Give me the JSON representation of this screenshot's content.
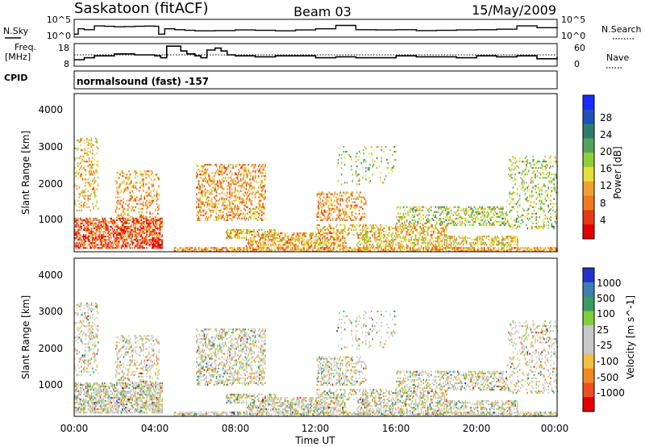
{
  "header": {
    "station": "Saskatoon (fitACF)",
    "beam": "Beam 03",
    "date": "15/May/2009"
  },
  "top_panels": {
    "left_label_nsky": "N.Sky",
    "left_label_freq_1": "Freq.",
    "left_label_freq_2": "[MHz]",
    "left_label_cpid": "CPID",
    "right_label_nsearch": "N.Search",
    "right_label_nave": "Nave",
    "noise_ticks": [
      "10^5",
      "10^0"
    ],
    "freq_ticks": [
      "18",
      "8"
    ],
    "nave_ticks": [
      "60",
      "0"
    ],
    "cpid_text": "normalsound (fast) -157"
  },
  "colorbars": {
    "power_title": "Power [dB]",
    "power_ticks": [
      "28",
      "24",
      "20",
      "16",
      "12",
      "8",
      "4"
    ],
    "power_colors": [
      "#1a2bff",
      "#2050b8",
      "#2e7d6a",
      "#55a35c",
      "#8fcf3a",
      "#e5e03a",
      "#f0a030",
      "#f07a20",
      "#e83a15",
      "#e40000"
    ],
    "velocity_title": "Velocity [m s^-1]",
    "velocity_ticks": [
      "1000",
      "500",
      "100",
      "25",
      "-25",
      "-100",
      "-500",
      "-1000"
    ],
    "velocity_colors": [
      "#2233cc",
      "#3f7fb0",
      "#3a9a60",
      "#7fcf3a",
      "#c8c8c8",
      "#c8c8c8",
      "#f0c040",
      "#f08a20",
      "#f05020",
      "#e40000"
    ]
  },
  "axes": {
    "y_label": "Slant Range [km]",
    "y_ticks": [
      "4000",
      "3000",
      "2000",
      "1000"
    ],
    "x_label": "Time UT",
    "x_ticks": [
      "00:00",
      "04:00",
      "08:00",
      "12:00",
      "16:00",
      "20:00",
      "00:00"
    ]
  },
  "chart_data": [
    {
      "type": "line",
      "name": "N.Sky / N.Search noise",
      "y_scale": "log",
      "ylim": [
        1,
        100000
      ],
      "x_range_hours": [
        0,
        24
      ],
      "x": [
        0,
        0.2,
        0.5,
        1.0,
        1.5,
        2.0,
        2.5,
        3.0,
        3.5,
        4.0,
        4.2,
        4.5,
        5.0,
        5.5,
        6.0,
        7.0,
        8.0,
        9.0,
        10.0,
        11.0,
        12.0,
        13.0,
        14.0,
        15.0,
        16.0,
        17.0,
        18.0,
        19.0,
        20.0,
        21.0,
        22.0,
        23.0,
        24.0
      ],
      "y": [
        3,
        200,
        100,
        2000,
        1500,
        1000,
        1200,
        1500,
        1800,
        1500,
        3,
        200,
        100,
        60,
        40,
        50,
        80,
        60,
        40,
        80,
        200,
        3000,
        100,
        80,
        100,
        50,
        60,
        80,
        100,
        150,
        2000,
        500,
        300
      ]
    },
    {
      "type": "line",
      "name": "Frequency",
      "ylim": [
        8,
        18
      ],
      "x": [
        0,
        0.5,
        1.0,
        2.0,
        3.0,
        4.0,
        4.3,
        4.6,
        5.3,
        5.6,
        6.0,
        6.3,
        6.6,
        7.0,
        7.3,
        7.6,
        8.0,
        9.0,
        10.0,
        11.0,
        12.0,
        13.0,
        14.0,
        15.0,
        16.0,
        17.0,
        18.0,
        19.0,
        20.0,
        21.0,
        22.0,
        23.0,
        24.0
      ],
      "y": [
        10.5,
        11.5,
        12.5,
        13.5,
        13.0,
        12.5,
        11.5,
        17.5,
        15.0,
        13.5,
        12.5,
        11.5,
        15.5,
        16.5,
        15.0,
        13.0,
        12.5,
        12.0,
        12.5,
        12.5,
        11.5,
        12.0,
        11.5,
        11.5,
        12.5,
        12.0,
        12.0,
        11.5,
        12.5,
        12.0,
        12.5,
        11.0,
        12.0
      ]
    }
  ]
}
